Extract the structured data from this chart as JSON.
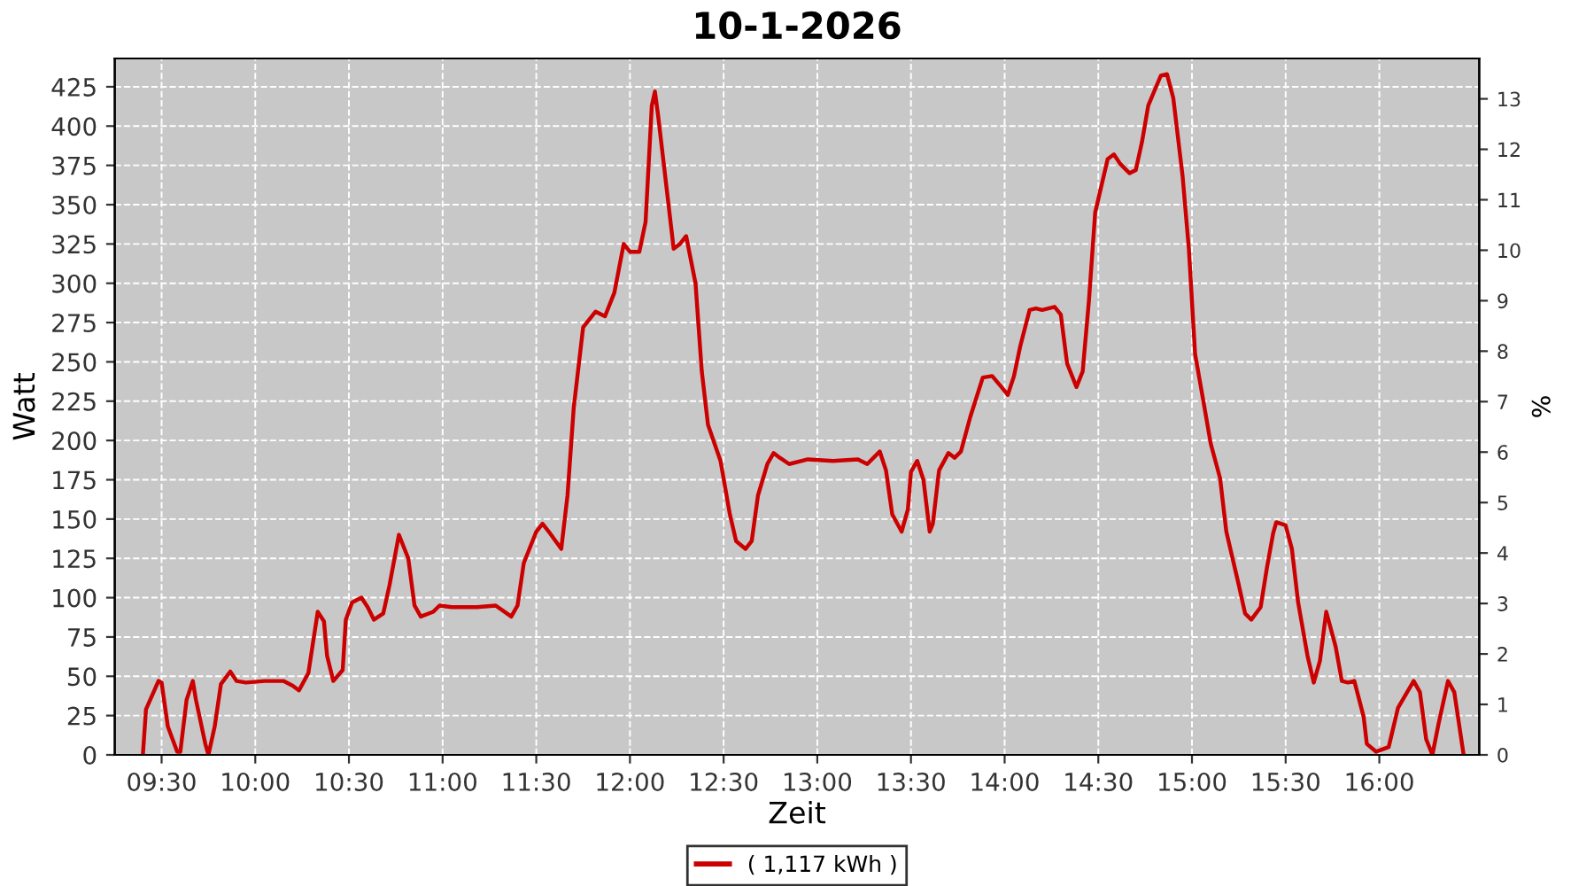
{
  "chart_data": {
    "type": "line",
    "title": "10-1-2026",
    "xlabel": "Zeit",
    "ylabel": "Watt",
    "y2label": "%",
    "xlim": [
      "2026-01-10T09:15",
      "2026-01-10T16:32"
    ],
    "xticks": [
      {
        "value": "2026-01-10T09:30",
        "label": "09:30"
      },
      {
        "value": "2026-01-10T10:00",
        "label": "10:00"
      },
      {
        "value": "2026-01-10T10:30",
        "label": "10:30"
      },
      {
        "value": "2026-01-10T11:00",
        "label": "11:00"
      },
      {
        "value": "2026-01-10T11:30",
        "label": "11:30"
      },
      {
        "value": "2026-01-10T12:00",
        "label": "12:00"
      },
      {
        "value": "2026-01-10T12:30",
        "label": "12:30"
      },
      {
        "value": "2026-01-10T13:00",
        "label": "13:00"
      },
      {
        "value": "2026-01-10T13:30",
        "label": "13:30"
      },
      {
        "value": "2026-01-10T14:00",
        "label": "14:00"
      },
      {
        "value": "2026-01-10T14:30",
        "label": "14:30"
      },
      {
        "value": "2026-01-10T15:00",
        "label": "15:00"
      },
      {
        "value": "2026-01-10T15:30",
        "label": "15:30"
      },
      {
        "value": "2026-01-10T16:00",
        "label": "16:00"
      }
    ],
    "ylim": [
      0,
      443
    ],
    "yticks": [
      0,
      25,
      50,
      75,
      100,
      125,
      150,
      175,
      200,
      225,
      250,
      275,
      300,
      325,
      350,
      375,
      400,
      425
    ],
    "y2lim": [
      0,
      13.8
    ],
    "y2ticks": [
      0,
      1,
      2,
      3,
      4,
      5,
      6,
      7,
      8,
      9,
      10,
      11,
      12,
      13
    ],
    "grid": true,
    "legend": "bottom",
    "line_style": "solid",
    "marker": "none",
    "series": [
      {
        "name": "( 1,117 kWh )",
        "color": "#cc0000",
        "x": [
          "2026-01-10T09:24",
          "2026-01-10T09:25",
          "2026-01-10T09:29",
          "2026-01-10T09:30",
          "2026-01-10T09:32",
          "2026-01-10T09:35",
          "2026-01-10T09:36",
          "2026-01-10T09:38",
          "2026-01-10T09:40",
          "2026-01-10T09:41",
          "2026-01-10T09:44",
          "2026-01-10T09:45",
          "2026-01-10T09:47",
          "2026-01-10T09:49",
          "2026-01-10T09:52",
          "2026-01-10T09:54",
          "2026-01-10T09:57",
          "2026-01-10T10:03",
          "2026-01-10T10:09",
          "2026-01-10T10:12",
          "2026-01-10T10:14",
          "2026-01-10T10:17",
          "2026-01-10T10:20",
          "2026-01-10T10:22",
          "2026-01-10T10:23",
          "2026-01-10T10:25",
          "2026-01-10T10:28",
          "2026-01-10T10:29",
          "2026-01-10T10:31",
          "2026-01-10T10:34",
          "2026-01-10T10:36",
          "2026-01-10T10:38",
          "2026-01-10T10:41",
          "2026-01-10T10:43",
          "2026-01-10T10:46",
          "2026-01-10T10:49",
          "2026-01-10T10:51",
          "2026-01-10T10:53",
          "2026-01-10T10:57",
          "2026-01-10T10:59",
          "2026-01-10T11:03",
          "2026-01-10T11:11",
          "2026-01-10T11:17",
          "2026-01-10T11:22",
          "2026-01-10T11:24",
          "2026-01-10T11:26",
          "2026-01-10T11:30",
          "2026-01-10T11:32",
          "2026-01-10T11:34",
          "2026-01-10T11:38",
          "2026-01-10T11:40",
          "2026-01-10T11:42",
          "2026-01-10T11:45",
          "2026-01-10T11:49",
          "2026-01-10T11:52",
          "2026-01-10T11:55",
          "2026-01-10T11:58",
          "2026-01-10T12:00",
          "2026-01-10T12:03",
          "2026-01-10T12:05",
          "2026-01-10T12:07",
          "2026-01-10T12:08",
          "2026-01-10T12:09",
          "2026-01-10T12:12",
          "2026-01-10T12:14",
          "2026-01-10T12:16",
          "2026-01-10T12:18",
          "2026-01-10T12:21",
          "2026-01-10T12:23",
          "2026-01-10T12:25",
          "2026-01-10T12:29",
          "2026-01-10T12:32",
          "2026-01-10T12:34",
          "2026-01-10T12:37",
          "2026-01-10T12:39",
          "2026-01-10T12:41",
          "2026-01-10T12:44",
          "2026-01-10T12:46",
          "2026-01-10T12:48",
          "2026-01-10T12:51",
          "2026-01-10T12:57",
          "2026-01-10T13:05",
          "2026-01-10T13:13",
          "2026-01-10T13:16",
          "2026-01-10T13:20",
          "2026-01-10T13:22",
          "2026-01-10T13:24",
          "2026-01-10T13:27",
          "2026-01-10T13:29",
          "2026-01-10T13:30",
          "2026-01-10T13:32",
          "2026-01-10T13:34",
          "2026-01-10T13:36",
          "2026-01-10T13:37",
          "2026-01-10T13:39",
          "2026-01-10T13:42",
          "2026-01-10T13:44",
          "2026-01-10T13:46",
          "2026-01-10T13:49",
          "2026-01-10T13:53",
          "2026-01-10T13:56",
          "2026-01-10T13:59",
          "2026-01-10T14:01",
          "2026-01-10T14:03",
          "2026-01-10T14:05",
          "2026-01-10T14:08",
          "2026-01-10T14:10",
          "2026-01-10T14:12",
          "2026-01-10T14:16",
          "2026-01-10T14:18",
          "2026-01-10T14:20",
          "2026-01-10T14:23",
          "2026-01-10T14:25",
          "2026-01-10T14:27",
          "2026-01-10T14:29",
          "2026-01-10T14:33",
          "2026-01-10T14:35",
          "2026-01-10T14:37",
          "2026-01-10T14:40",
          "2026-01-10T14:42",
          "2026-01-10T14:44",
          "2026-01-10T14:46",
          "2026-01-10T14:50",
          "2026-01-10T14:52",
          "2026-01-10T14:54",
          "2026-01-10T14:57",
          "2026-01-10T14:59",
          "2026-01-10T15:01",
          "2026-01-10T15:04",
          "2026-01-10T15:06",
          "2026-01-10T15:09",
          "2026-01-10T15:11",
          "2026-01-10T15:15",
          "2026-01-10T15:17",
          "2026-01-10T15:19",
          "2026-01-10T15:22",
          "2026-01-10T15:24",
          "2026-01-10T15:26",
          "2026-01-10T15:27",
          "2026-01-10T15:30",
          "2026-01-10T15:32",
          "2026-01-10T15:34",
          "2026-01-10T15:37",
          "2026-01-10T15:39",
          "2026-01-10T15:41",
          "2026-01-10T15:43",
          "2026-01-10T15:46",
          "2026-01-10T15:48",
          "2026-01-10T15:50",
          "2026-01-10T15:52",
          "2026-01-10T15:55",
          "2026-01-10T15:56",
          "2026-01-10T15:59",
          "2026-01-10T16:03",
          "2026-01-10T16:06",
          "2026-01-10T16:11",
          "2026-01-10T16:13",
          "2026-01-10T16:15",
          "2026-01-10T16:17",
          "2026-01-10T16:19",
          "2026-01-10T16:22",
          "2026-01-10T16:24",
          "2026-01-10T16:27"
        ],
        "values": [
          0,
          29,
          47,
          46,
          18,
          2,
          2,
          35,
          47,
          35,
          7,
          0,
          18,
          45,
          53,
          47,
          46,
          47,
          47,
          44,
          41,
          52,
          91,
          85,
          63,
          47,
          54,
          86,
          97,
          100,
          94,
          86,
          90,
          108,
          140,
          125,
          95,
          88,
          91,
          95,
          94,
          94,
          95,
          88,
          95,
          122,
          142,
          147,
          142,
          131,
          165,
          221,
          272,
          282,
          279,
          294,
          325,
          320,
          320,
          339,
          413,
          422,
          407,
          356,
          322,
          325,
          330,
          300,
          244,
          210,
          187,
          153,
          136,
          131,
          136,
          165,
          185,
          192,
          189,
          185,
          188,
          187,
          188,
          185,
          193,
          181,
          153,
          142,
          156,
          180,
          187,
          175,
          142,
          147,
          181,
          192,
          189,
          193,
          215,
          240,
          241,
          234,
          229,
          241,
          260,
          283,
          284,
          283,
          285,
          280,
          249,
          234,
          244,
          289,
          345,
          379,
          382,
          376,
          370,
          372,
          390,
          413,
          432,
          433,
          418,
          368,
          322,
          255,
          221,
          198,
          176,
          142,
          108,
          90,
          86,
          94,
          119,
          141,
          148,
          146,
          131,
          97,
          63,
          46,
          60,
          91,
          69,
          47,
          46,
          47,
          24,
          7,
          2,
          5,
          30,
          47,
          40,
          10,
          0,
          20,
          47,
          40,
          0
        ]
      }
    ]
  }
}
